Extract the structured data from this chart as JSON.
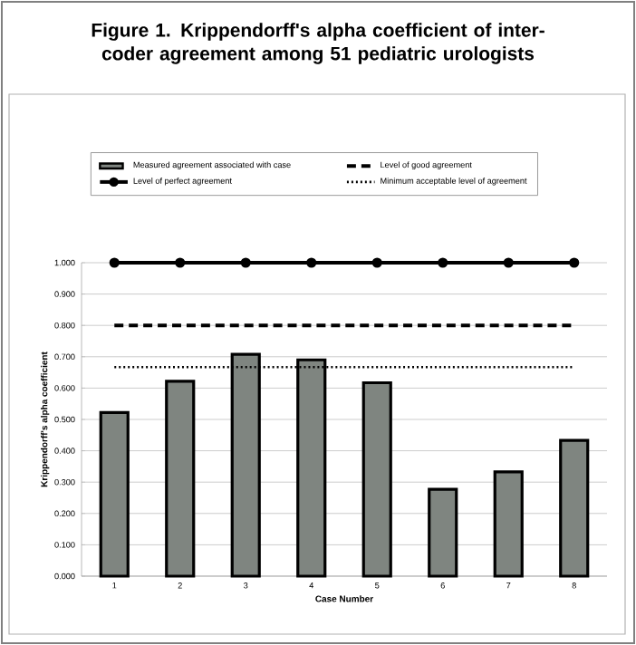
{
  "chart_data": {
    "type": "bar",
    "title": "Figure 1. Krippendorff's alpha coefficient of inter-coder agreement among 51 pediatric urologists",
    "xlabel": "Case Number",
    "ylabel": "Krippendorff's alpha coefficient",
    "categories": [
      "1",
      "2",
      "3",
      "4",
      "5",
      "6",
      "7",
      "8"
    ],
    "series": [
      {
        "name": "Measured agreement associated with case",
        "color": "#7f8580",
        "values": [
          0.522,
          0.622,
          0.708,
          0.69,
          0.617,
          0.277,
          0.333,
          0.433
        ]
      },
      {
        "name": "Level of good agreement",
        "type": "line",
        "color": "#000000",
        "line_style": "dashed",
        "marker": "none",
        "values": [
          0.8,
          0.8,
          0.8,
          0.8,
          0.8,
          0.8,
          0.8,
          0.8
        ]
      },
      {
        "name": "Level of perfect agreement",
        "type": "line",
        "color": "#000000",
        "line_style": "solid",
        "marker": "circle",
        "values": [
          1.0,
          1.0,
          1.0,
          1.0,
          1.0,
          1.0,
          1.0,
          1.0
        ]
      },
      {
        "name": "Minimum acceptable level of agreement",
        "type": "line",
        "color": "#000000",
        "line_style": "dotted",
        "marker": "none",
        "values": [
          0.667,
          0.667,
          0.667,
          0.667,
          0.667,
          0.667,
          0.667,
          0.667
        ]
      }
    ],
    "ylim": [
      0,
      1
    ],
    "yticks": [
      {
        "value": 0,
        "label": "0.000"
      },
      {
        "value": 0.1,
        "label": "0.100"
      },
      {
        "value": 0.2,
        "label": "0.200"
      },
      {
        "value": 0.3,
        "label": "0.300"
      },
      {
        "value": 0.4,
        "label": "0.400"
      },
      {
        "value": 0.5,
        "label": "0.500"
      },
      {
        "value": 0.6,
        "label": "0.600"
      },
      {
        "value": 0.7,
        "label": "0.700"
      },
      {
        "value": 0.8,
        "label": "0.800"
      },
      {
        "value": 0.9,
        "label": "0.900"
      },
      {
        "value": 1,
        "label": "1.000"
      }
    ],
    "grid": "y",
    "legend": "top"
  }
}
